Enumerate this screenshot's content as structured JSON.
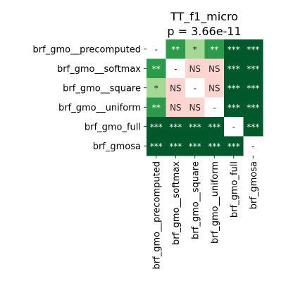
{
  "chart_data": {
    "type": "heatmap",
    "title": "TT_f1_micro",
    "subtitle": "p = 3.66e-11",
    "rows": [
      "brf_gmo__precomputed",
      "brf_gmo__softmax",
      "brf_gmo__square",
      "brf_gmo__uniform",
      "brf_gmo_full",
      "brf_gmosa"
    ],
    "columns": [
      "brf_gmo__precomputed",
      "brf_gmo__softmax",
      "brf_gmo__square",
      "brf_gmo__uniform",
      "brf_gmo_full",
      "brf_gmosa"
    ],
    "cells": [
      [
        "-",
        "**",
        "*",
        "**",
        "***",
        "***"
      ],
      [
        "**",
        "-",
        "NS",
        "NS",
        "***",
        "***"
      ],
      [
        "*",
        "NS",
        "-",
        "NS",
        "***",
        "***"
      ],
      [
        "**",
        "NS",
        "NS",
        "-",
        "***",
        "***"
      ],
      [
        "***",
        "***",
        "***",
        "***",
        "-",
        "***"
      ],
      [
        "***",
        "***",
        "***",
        "***",
        "***",
        "-"
      ]
    ],
    "colors": {
      "-": "#ffffff",
      "NS": "#fdd5d0",
      "*": "#a3d995",
      "**": "#2b9a4b",
      "***": "#00592a"
    }
  }
}
